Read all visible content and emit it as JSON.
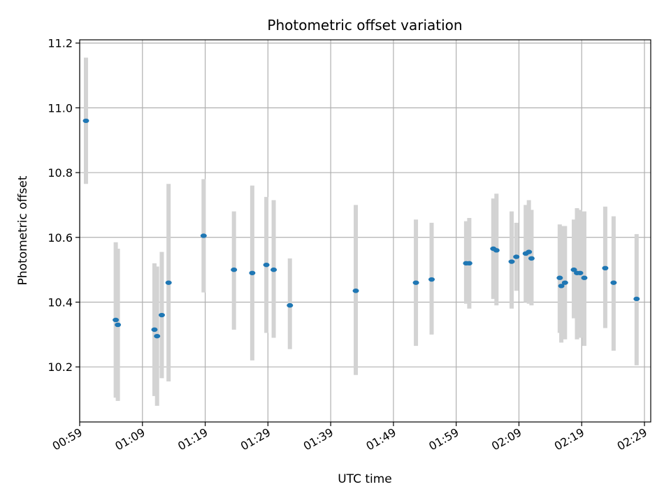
{
  "chart_data": {
    "type": "scatter",
    "title": "Photometric offset variation",
    "xlabel": "UTC time",
    "ylabel": "Photometric offset",
    "x_axis": "time",
    "xlim": [
      "00:59:00",
      "02:30:00"
    ],
    "ylim": [
      10.03,
      11.21
    ],
    "xticks": [
      "00:59",
      "01:09",
      "01:19",
      "01:29",
      "01:39",
      "01:49",
      "01:59",
      "02:09",
      "02:19",
      "02:29"
    ],
    "yticks": [
      "10.2",
      "10.4",
      "10.6",
      "10.8",
      "11.0",
      "11.2"
    ],
    "grid": true,
    "colors": {
      "points": "#1f77b4",
      "errorbars": "#d3d3d3",
      "grid": "#b0b0b0"
    },
    "points": [
      {
        "x": "01:00:00",
        "y": 10.96,
        "ylow": 10.765,
        "yhigh": 11.155
      },
      {
        "x": "01:04:45",
        "y": 10.345,
        "ylow": 10.105,
        "yhigh": 10.585
      },
      {
        "x": "01:05:05",
        "y": 10.33,
        "ylow": 10.095,
        "yhigh": 10.565
      },
      {
        "x": "01:10:55",
        "y": 10.315,
        "ylow": 10.11,
        "yhigh": 10.52
      },
      {
        "x": "01:11:20",
        "y": 10.295,
        "ylow": 10.08,
        "yhigh": 10.51
      },
      {
        "x": "01:12:05",
        "y": 10.36,
        "ylow": 10.165,
        "yhigh": 10.555
      },
      {
        "x": "01:13:10",
        "y": 10.46,
        "ylow": 10.155,
        "yhigh": 10.765
      },
      {
        "x": "01:18:45",
        "y": 10.605,
        "ylow": 10.43,
        "yhigh": 10.78
      },
      {
        "x": "01:23:35",
        "y": 10.5,
        "ylow": 10.315,
        "yhigh": 10.68
      },
      {
        "x": "01:26:30",
        "y": 10.49,
        "ylow": 10.22,
        "yhigh": 10.76
      },
      {
        "x": "01:28:45",
        "y": 10.515,
        "ylow": 10.305,
        "yhigh": 10.725
      },
      {
        "x": "01:29:55",
        "y": 10.5,
        "ylow": 10.29,
        "yhigh": 10.715
      },
      {
        "x": "01:32:30",
        "y": 10.39,
        "ylow": 10.255,
        "yhigh": 10.535
      },
      {
        "x": "01:43:00",
        "y": 10.435,
        "ylow": 10.175,
        "yhigh": 10.7
      },
      {
        "x": "01:52:35",
        "y": 10.46,
        "ylow": 10.265,
        "yhigh": 10.655
      },
      {
        "x": "01:55:05",
        "y": 10.47,
        "ylow": 10.3,
        "yhigh": 10.645
      },
      {
        "x": "02:00:35",
        "y": 10.52,
        "ylow": 10.395,
        "yhigh": 10.65
      },
      {
        "x": "02:01:05",
        "y": 10.52,
        "ylow": 10.38,
        "yhigh": 10.66
      },
      {
        "x": "02:04:55",
        "y": 10.565,
        "ylow": 10.41,
        "yhigh": 10.72
      },
      {
        "x": "02:05:25",
        "y": 10.56,
        "ylow": 10.39,
        "yhigh": 10.735
      },
      {
        "x": "02:07:50",
        "y": 10.525,
        "ylow": 10.38,
        "yhigh": 10.68
      },
      {
        "x": "02:08:35",
        "y": 10.54,
        "ylow": 10.435,
        "yhigh": 10.645
      },
      {
        "x": "02:10:05",
        "y": 10.55,
        "ylow": 10.4,
        "yhigh": 10.7
      },
      {
        "x": "02:10:35",
        "y": 10.555,
        "ylow": 10.395,
        "yhigh": 10.715
      },
      {
        "x": "02:11:00",
        "y": 10.535,
        "ylow": 10.39,
        "yhigh": 10.685
      },
      {
        "x": "02:15:30",
        "y": 10.475,
        "ylow": 10.305,
        "yhigh": 10.64
      },
      {
        "x": "02:15:45",
        "y": 10.45,
        "ylow": 10.275,
        "yhigh": 10.635
      },
      {
        "x": "02:16:20",
        "y": 10.46,
        "ylow": 10.285,
        "yhigh": 10.635
      },
      {
        "x": "02:17:45",
        "y": 10.5,
        "ylow": 10.35,
        "yhigh": 10.655
      },
      {
        "x": "02:18:15",
        "y": 10.49,
        "ylow": 10.285,
        "yhigh": 10.69
      },
      {
        "x": "02:18:45",
        "y": 10.49,
        "ylow": 10.29,
        "yhigh": 10.685
      },
      {
        "x": "02:19:25",
        "y": 10.475,
        "ylow": 10.265,
        "yhigh": 10.68
      },
      {
        "x": "02:22:45",
        "y": 10.505,
        "ylow": 10.32,
        "yhigh": 10.695
      },
      {
        "x": "02:24:05",
        "y": 10.46,
        "ylow": 10.25,
        "yhigh": 10.665
      },
      {
        "x": "02:27:45",
        "y": 10.41,
        "ylow": 10.205,
        "yhigh": 10.61
      }
    ]
  }
}
